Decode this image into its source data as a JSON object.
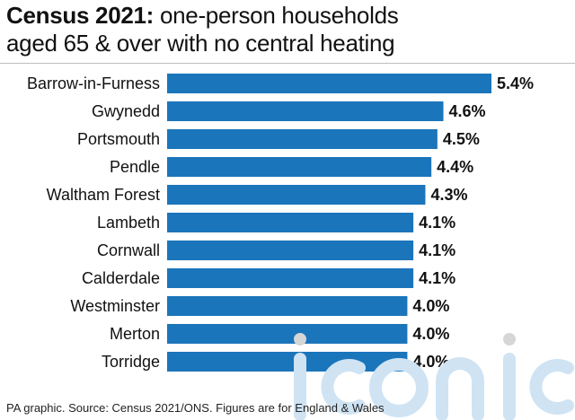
{
  "title": {
    "bold": "Census 2021:",
    "rest_line1": " one-person households",
    "line2": "aged 65 & over with no central heating"
  },
  "footer": "PA graphic. Source: Census 2021/ONS. Figures are for England & Wales",
  "watermark": {
    "text": "iconic"
  },
  "colors": {
    "bar": "#1b75bb",
    "text": "#111111",
    "rule": "#bdbdbd",
    "watermark": "#cfe3f3"
  },
  "chart_data": {
    "type": "bar",
    "orientation": "horizontal",
    "categories": [
      "Barrow-in-Furness",
      "Gwynedd",
      "Portsmouth",
      "Pendle",
      "Waltham Forest",
      "Lambeth",
      "Cornwall",
      "Calderdale",
      "Westminster",
      "Merton",
      "Torridge"
    ],
    "values": [
      5.4,
      4.6,
      4.5,
      4.4,
      4.3,
      4.1,
      4.1,
      4.1,
      4.0,
      4.0,
      4.0
    ],
    "value_labels": [
      "5.4%",
      "4.6%",
      "4.5%",
      "4.4%",
      "4.3%",
      "4.1%",
      "4.1%",
      "4.1%",
      "4.0%",
      "4.0%",
      "4.0%"
    ],
    "unit": "%",
    "xlim": [
      0,
      5.4
    ],
    "grid": false,
    "legend": "none"
  }
}
